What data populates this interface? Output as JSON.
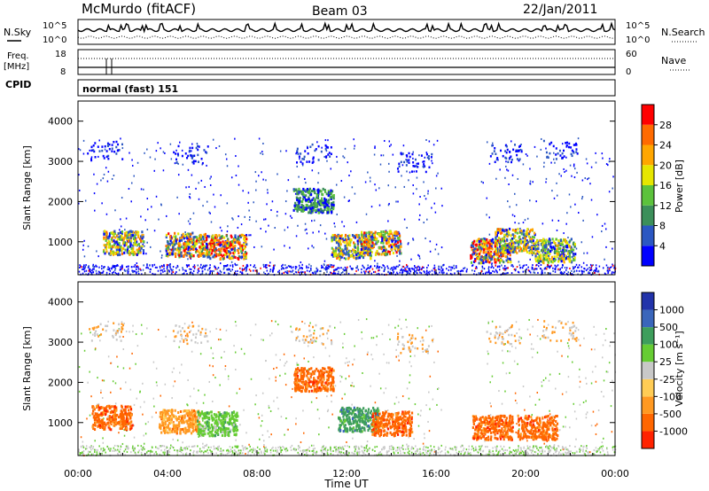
{
  "header": {
    "station": "McMurdo (fitACF)",
    "beam": "Beam 03",
    "date": "22/Jan/2011"
  },
  "noise_panel": {
    "left_label": "N.Sky",
    "right_label": "N.Search",
    "left_ticks": [
      "10^5",
      "10^0"
    ],
    "right_ticks": [
      "10^5",
      "10^0"
    ]
  },
  "freq_panel": {
    "left_label_line1": "Freq.",
    "left_label_line2": "[MHz]",
    "right_label": "Nave",
    "left_ticks": [
      "18",
      "8"
    ],
    "right_ticks": [
      "60",
      "0"
    ]
  },
  "cpid": {
    "label": "CPID",
    "value": "normal (fast) 151"
  },
  "colors": {
    "power_scale": [
      "#0000ff",
      "#2b57c2",
      "#3c8f5a",
      "#5cc23c",
      "#e6e600",
      "#ffa600",
      "#ff6a00",
      "#ff0000"
    ],
    "velocity_scale": [
      "#2233aa",
      "#3a66bb",
      "#3e9e5c",
      "#66cc33",
      "#c8c8c8",
      "#ffcc55",
      "#ff9922",
      "#ff6600",
      "#ff2200"
    ]
  },
  "chart_data": [
    {
      "type": "heatmap",
      "name": "power",
      "ylabel": "Slant Range [km]",
      "ylim": [
        180,
        4500
      ],
      "yticks": [
        "1000",
        "2000",
        "3000",
        "4000"
      ],
      "xlim": [
        "00:00",
        "24:00"
      ],
      "colorbar_label": "Power [dB]",
      "colorbar_ticks": [
        "4",
        "8",
        "12",
        "16",
        "20",
        "24",
        "28"
      ],
      "features": [
        {
          "ut": 2.0,
          "range": 1000,
          "level": 5
        },
        {
          "ut": 4.8,
          "range": 950,
          "level": 6
        },
        {
          "ut": 6.6,
          "range": 900,
          "level": 7
        },
        {
          "ut": 10.5,
          "range": 2050,
          "level": 2
        },
        {
          "ut": 12.2,
          "range": 900,
          "level": 5
        },
        {
          "ut": 13.5,
          "range": 1000,
          "level": 6
        },
        {
          "ut": 18.4,
          "range": 800,
          "level": 7
        },
        {
          "ut": 19.5,
          "range": 1050,
          "level": 5
        },
        {
          "ut": 21.3,
          "range": 800,
          "level": 4
        }
      ]
    },
    {
      "type": "heatmap",
      "name": "velocity",
      "ylabel": "Slant Range [km]",
      "ylim": [
        180,
        4500
      ],
      "yticks": [
        "1000",
        "2000",
        "3000",
        "4000"
      ],
      "xlabel": "Time UT",
      "xticks": [
        "00:00",
        "04:00",
        "08:00",
        "12:00",
        "16:00",
        "20:00",
        "00:00"
      ],
      "colorbar_label": "Velocity [m s⁻¹]",
      "colorbar_ticks": [
        "1000",
        "500",
        "100",
        "25",
        "-25",
        "-100",
        "-500",
        "-1000"
      ],
      "features": [
        {
          "ut": 1.5,
          "range": 1150,
          "velocity": -120
        },
        {
          "ut": 4.5,
          "range": 1050,
          "velocity": -60
        },
        {
          "ut": 6.2,
          "range": 1000,
          "velocity": 90
        },
        {
          "ut": 10.5,
          "range": 2100,
          "velocity": -450
        },
        {
          "ut": 12.5,
          "range": 1100,
          "velocity": 120
        },
        {
          "ut": 14.0,
          "range": 1000,
          "velocity": -300
        },
        {
          "ut": 18.5,
          "range": 900,
          "velocity": -350
        },
        {
          "ut": 20.5,
          "range": 900,
          "velocity": -400
        }
      ]
    }
  ]
}
